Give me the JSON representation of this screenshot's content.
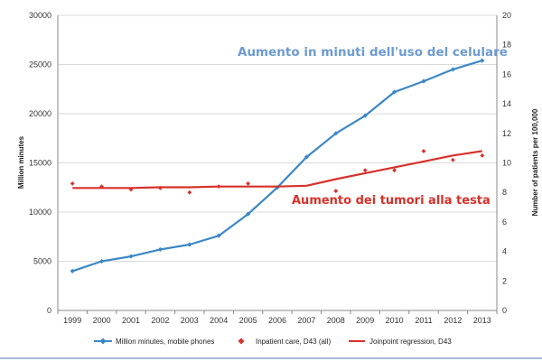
{
  "chart_data": {
    "type": "line",
    "x": [
      "1999",
      "2000",
      "2001",
      "2002",
      "2003",
      "2004",
      "2005",
      "2006",
      "2007",
      "2008",
      "2009",
      "2010",
      "2011",
      "2012",
      "2013"
    ],
    "y_left": {
      "label": "Million minutes",
      "lim": [
        0,
        30000
      ],
      "ticks": [
        "0",
        "5000",
        "10000",
        "15000",
        "20000",
        "25000",
        "30000"
      ]
    },
    "y_right": {
      "label": "Number of patients per 100,000",
      "lim": [
        0,
        20
      ],
      "ticks": [
        "0",
        "2",
        "4",
        "6",
        "8",
        "10",
        "12",
        "14",
        "16",
        "18",
        "20"
      ]
    },
    "grid": true,
    "legend_position": "bottom",
    "series": [
      {
        "name": "Million minutes, mobile phones",
        "axis": "left",
        "color": "#3a87c6",
        "marker": "diamond",
        "values": [
          4000,
          5000,
          5500,
          6200,
          6700,
          7600,
          9800,
          12500,
          15600,
          18000,
          19800,
          22200,
          23300,
          24500,
          25400
        ]
      },
      {
        "name": "Inpatient care, D43 (all)",
        "axis": "right",
        "color": "#d7312a",
        "marker": "diamond-only",
        "values": [
          8.6,
          8.4,
          8.2,
          8.3,
          8.0,
          8.4,
          8.6,
          null,
          null,
          8.1,
          9.5,
          9.5,
          10.8,
          10.2,
          10.5
        ]
      },
      {
        "name": "Joinpoint regression, D43",
        "axis": "right",
        "color": "#d7312a",
        "marker": "none",
        "values": [
          8.3,
          8.3,
          8.3,
          8.35,
          8.35,
          8.4,
          8.4,
          8.4,
          8.45,
          8.9,
          9.3,
          9.7,
          10.1,
          10.5,
          10.8
        ]
      }
    ],
    "annotations": [
      {
        "text": "Aumento in minuti dell'uso del celulare",
        "color": "#6c9bd2"
      },
      {
        "text": "Aumento dei tumori alla testa",
        "color": "#d7312a"
      }
    ]
  }
}
